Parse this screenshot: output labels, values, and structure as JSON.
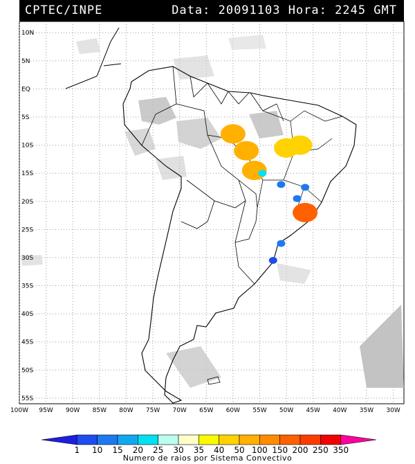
{
  "header": {
    "source": "CPTEC/INPE",
    "datetime": "Data: 20091103 Hora: 2245 GMT"
  },
  "map": {
    "lat_labels": [
      "10N",
      "5N",
      "EQ",
      "5S",
      "10S",
      "15S",
      "20S",
      "25S",
      "30S",
      "35S",
      "40S",
      "45S",
      "50S",
      "55S"
    ],
    "lon_labels": [
      "100W",
      "95W",
      "90W",
      "85W",
      "80W",
      "75W",
      "70W",
      "65W",
      "60W",
      "55W",
      "50W",
      "45W",
      "40W",
      "35W",
      "30W"
    ],
    "lon_range": [
      -100,
      -28
    ],
    "lat_range": [
      -56,
      12
    ],
    "grid": true,
    "cloud_color": "#bdbdbd",
    "lightning_clusters": [
      {
        "lon": -57.5,
        "lat": -11.0,
        "level": 50
      },
      {
        "lon": -60.0,
        "lat": -8.0,
        "level": 50
      },
      {
        "lon": -56.0,
        "lat": -14.5,
        "level": 50
      },
      {
        "lon": -50.0,
        "lat": -10.5,
        "level": 40
      },
      {
        "lon": -47.5,
        "lat": -10.0,
        "level": 40
      },
      {
        "lon": -54.5,
        "lat": -15.0,
        "level": 20
      },
      {
        "lon": -51.0,
        "lat": -17.0,
        "level": 10
      },
      {
        "lon": -46.5,
        "lat": -17.5,
        "level": 10
      },
      {
        "lon": -48.0,
        "lat": -19.5,
        "level": 10
      },
      {
        "lon": -51.0,
        "lat": -27.5,
        "level": 10
      },
      {
        "lon": -52.5,
        "lat": -30.5,
        "level": 1
      },
      {
        "lon": -46.5,
        "lat": -22.0,
        "level": 150
      }
    ]
  },
  "colorbar": {
    "levels": [
      "1",
      "10",
      "15",
      "20",
      "25",
      "30",
      "35",
      "40",
      "50",
      "100",
      "150",
      "200",
      "250",
      "350"
    ],
    "colors": [
      "#1e1ee0",
      "#1e4cf0",
      "#1e78f0",
      "#10a8f0",
      "#00e0f0",
      "#b8fff0",
      "#fffec8",
      "#fafa00",
      "#ffd200",
      "#ffb000",
      "#ff8c00",
      "#ff6000",
      "#ff3c00",
      "#f00000",
      "#ff00a0"
    ],
    "title": "Numero de raios por Sistema Convectivo"
  }
}
